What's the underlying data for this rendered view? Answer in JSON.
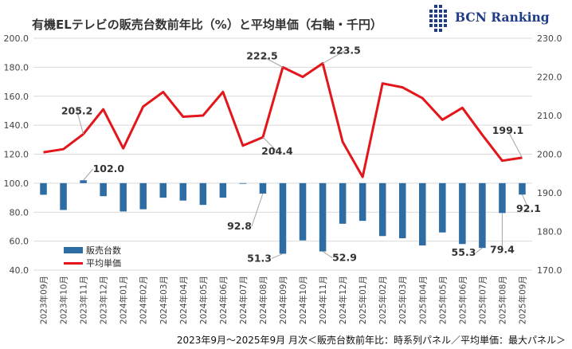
{
  "title": "有機ELテレビの販売台数前年比（%）と平均単価（右軸・千円）",
  "logo": {
    "text": "BCN Ranking"
  },
  "footer": "2023年9月～2025年9月 月次＜販売台数前年比：時系列パネル／平均単価：最大パネル＞",
  "colors": {
    "bar": "#2e6ca4",
    "line": "#e3161b",
    "grid": "#d9d9d9",
    "logo": "#1f3c88"
  },
  "chart_data": {
    "type": "bar",
    "categories": [
      "2023年09月",
      "2023年10月",
      "2023年11月",
      "2023年12月",
      "2024年01月",
      "2024年02月",
      "2024年03月",
      "2024年04月",
      "2024年05月",
      "2024年06月",
      "2024年07月",
      "2024年08月",
      "2024年09月",
      "2024年10月",
      "2024年11月",
      "2024年12月",
      "2025年01月",
      "2025年02月",
      "2025年03月",
      "2025年04月",
      "2025年05月",
      "2025年06月",
      "2025年07月",
      "2025年08月",
      "2025年09月"
    ],
    "ylim": [
      40,
      200
    ],
    "yticks": [
      "40.0",
      "60.0",
      "80.0",
      "100.0",
      "120.0",
      "140.0",
      "160.0",
      "180.0",
      "200.0"
    ],
    "y2lim": [
      170,
      230
    ],
    "y2ticks": [
      "170.0",
      "180.0",
      "190.0",
      "200.0",
      "210.0",
      "220.0",
      "230.0"
    ],
    "series": [
      {
        "name": "販売台数",
        "type": "bar",
        "axis": "left",
        "values": [
          92,
          81.5,
          102.0,
          91,
          80.5,
          82,
          90,
          88,
          85,
          90,
          100,
          92.8,
          51.3,
          60.5,
          52.9,
          72,
          74,
          63.5,
          62,
          57,
          66,
          58,
          55.3,
          79.4,
          92.1
        ]
      },
      {
        "name": "平均単価",
        "type": "line",
        "axis": "right",
        "values": [
          200.5,
          201.3,
          205.2,
          211.6,
          201.5,
          212.3,
          216.1,
          209.7,
          210.0,
          216.1,
          202.2,
          204.4,
          222.5,
          220.0,
          223.5,
          203.2,
          194.1,
          218.3,
          217.3,
          214.5,
          208.9,
          212.0,
          205.0,
          198.3,
          199.1
        ]
      }
    ],
    "data_labels": [
      {
        "series": 0,
        "index": 2,
        "text": "102.0"
      },
      {
        "series": 0,
        "index": 11,
        "text": "92.8"
      },
      {
        "series": 0,
        "index": 12,
        "text": "51.3"
      },
      {
        "series": 0,
        "index": 14,
        "text": "52.9"
      },
      {
        "series": 0,
        "index": 22,
        "text": "55.3"
      },
      {
        "series": 0,
        "index": 23,
        "text": "79.4"
      },
      {
        "series": 0,
        "index": 24,
        "text": "92.1"
      },
      {
        "series": 1,
        "index": 2,
        "text": "205.2"
      },
      {
        "series": 1,
        "index": 11,
        "text": "204.4"
      },
      {
        "series": 1,
        "index": 12,
        "text": "222.5"
      },
      {
        "series": 1,
        "index": 14,
        "text": "223.5"
      },
      {
        "series": 1,
        "index": 24,
        "text": "199.1"
      }
    ],
    "grid": true,
    "legend": "bottom-left"
  }
}
